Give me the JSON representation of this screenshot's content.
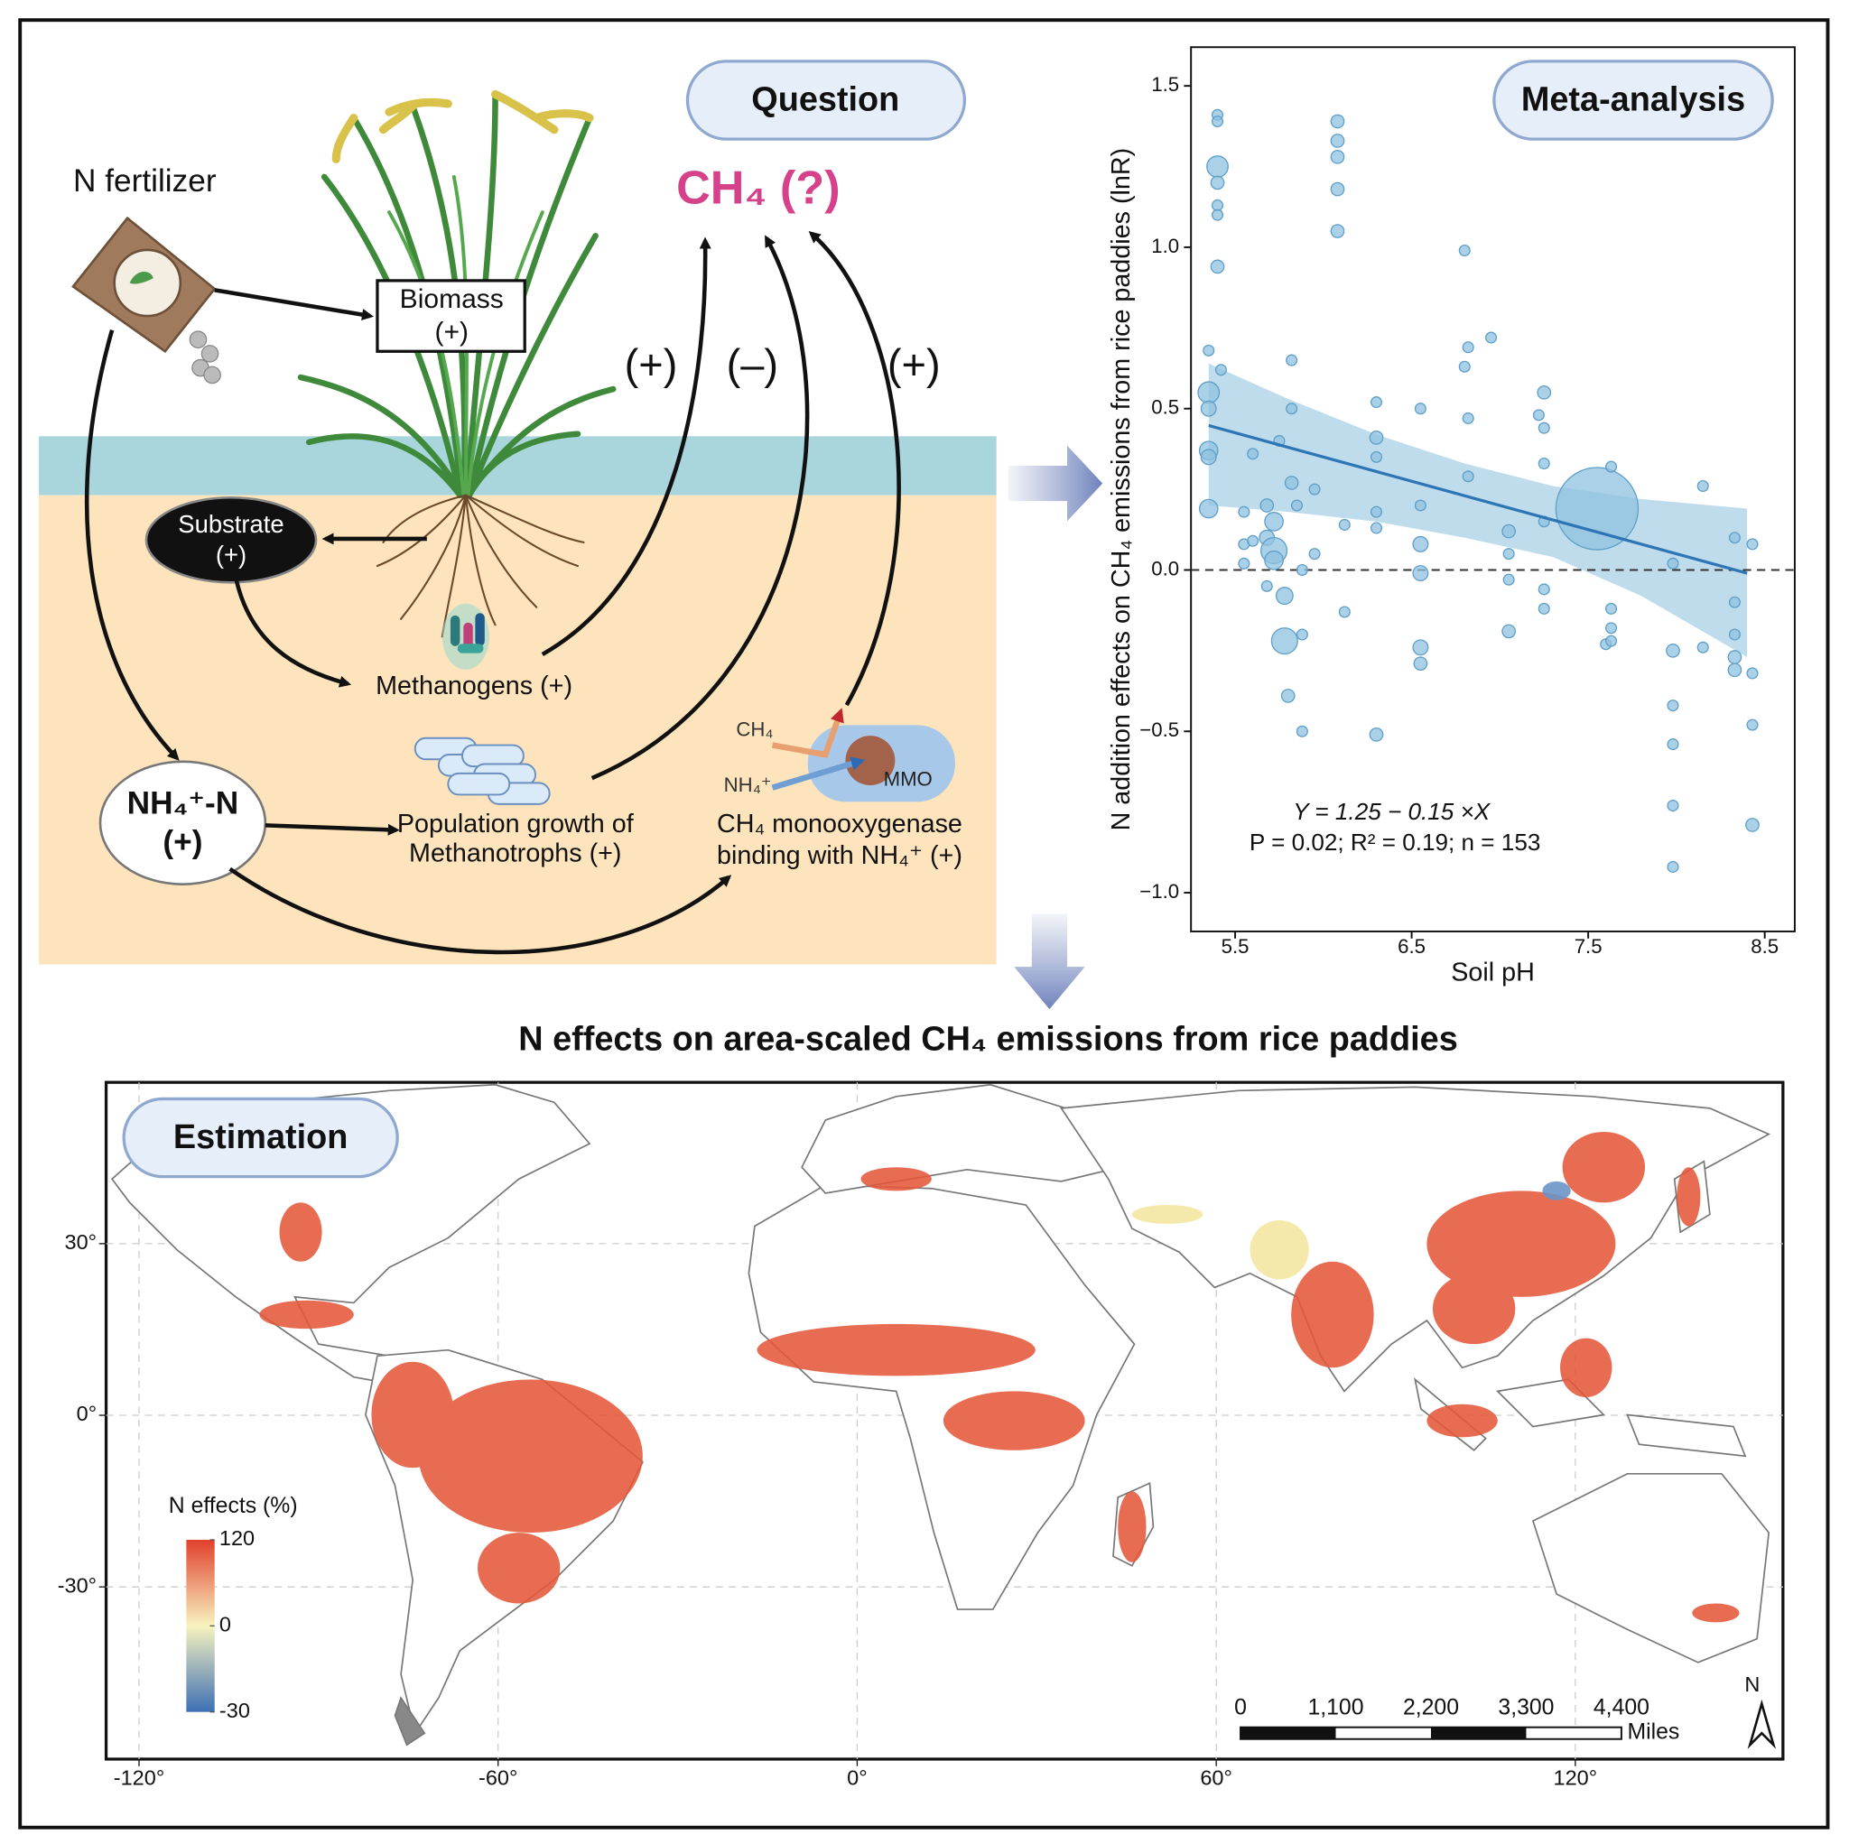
{
  "diagram": {
    "fertilizer": "N fertilizer",
    "question": "Question",
    "target": "CH₄ (?)",
    "biomass": [
      "Biomass",
      "(+)"
    ],
    "substrate": [
      "Substrate",
      "(+)"
    ],
    "methanogens": "Methanogens (+)",
    "ammonium": [
      "NH₄⁺-N",
      "(+)"
    ],
    "methanotrophs": [
      "Population growth of",
      "Methanotrophs (+)"
    ],
    "monooxygenase": [
      "CH₄ monooxygenase",
      "binding with NH₄⁺ (+)"
    ],
    "mmo_labels": [
      "CH₄",
      "NH₄⁺",
      "MMO"
    ],
    "pathway_signs": [
      "(+)",
      "(–)",
      "(+)"
    ]
  },
  "chart_data": {
    "type": "scatter",
    "title": "Meta-analysis",
    "x_label": "Soil pH",
    "y_label": "N addition effects on CH₄ emissions from rice paddies (lnR)",
    "x": [
      5.4,
      5.4,
      5.4,
      5.4,
      5.4,
      5.4,
      5.4,
      5.35,
      5.35,
      5.35,
      5.35,
      5.35,
      5.35,
      5.42,
      5.55,
      5.55,
      5.55,
      5.6,
      5.6,
      5.68,
      5.68,
      5.68,
      5.72,
      5.72,
      5.72,
      5.75,
      5.78,
      5.78,
      5.8,
      5.82,
      5.82,
      5.82,
      5.85,
      5.88,
      5.88,
      5.88,
      5.95,
      5.95,
      6.08,
      6.08,
      6.08,
      6.08,
      6.08,
      6.12,
      6.12,
      6.3,
      6.3,
      6.3,
      6.3,
      6.3,
      6.3,
      6.55,
      6.55,
      6.55,
      6.55,
      6.55,
      6.55,
      6.8,
      6.82,
      6.8,
      6.82,
      6.82,
      6.95,
      7.05,
      7.05,
      7.05,
      7.05,
      7.22,
      7.25,
      7.25,
      7.25,
      7.25,
      7.25,
      7.25,
      7.55,
      7.6,
      7.63,
      7.63,
      7.63,
      7.63,
      7.98,
      7.98,
      7.98,
      7.98,
      7.98,
      7.98,
      8.15,
      8.15,
      8.33,
      8.33,
      8.33,
      8.33,
      8.33,
      8.43,
      8.43,
      8.43,
      8.43
    ],
    "values": [
      1.41,
      1.39,
      1.25,
      1.2,
      1.13,
      1.1,
      0.94,
      0.68,
      0.55,
      0.5,
      0.37,
      0.35,
      0.19,
      0.62,
      0.18,
      0.08,
      0.02,
      0.36,
      0.09,
      0.2,
      0.1,
      -0.05,
      0.15,
      0.06,
      0.03,
      0.4,
      -0.08,
      -0.22,
      -0.39,
      0.65,
      0.5,
      0.27,
      0.2,
      0,
      -0.2,
      -0.5,
      0.25,
      0.05,
      1.39,
      1.33,
      1.28,
      1.18,
      1.05,
      0.14,
      -0.13,
      0.52,
      0.41,
      0.35,
      0.18,
      0.13,
      -0.51,
      0.5,
      0.2,
      0.08,
      -0.01,
      -0.24,
      -0.29,
      0.99,
      0.69,
      0.63,
      0.47,
      0.29,
      0.72,
      0.12,
      0.05,
      -0.03,
      -0.19,
      0.48,
      0.55,
      0.44,
      0.33,
      0.15,
      -0.06,
      -0.12,
      0.19,
      -0.23,
      0.32,
      -0.12,
      -0.18,
      -0.22,
      0.02,
      -0.25,
      -0.42,
      -0.54,
      -0.73,
      -0.92,
      0.26,
      -0.24,
      0.1,
      -0.1,
      -0.2,
      -0.27,
      -0.31,
      0.08,
      -0.32,
      -0.48,
      -0.79
    ],
    "sizes": [
      1,
      1,
      4,
      1.5,
      1,
      1,
      1.5,
      1,
      4,
      2,
      3,
      2,
      3,
      1,
      1,
      1,
      1,
      1,
      1,
      1.5,
      2,
      1,
      3,
      6,
      3,
      1,
      2.5,
      6,
      1.5,
      1,
      1,
      1.5,
      1,
      1,
      1,
      1,
      1,
      1,
      1.5,
      1.5,
      1.5,
      1.5,
      1.5,
      1,
      1,
      1,
      1.5,
      1,
      1,
      1,
      1.5,
      1,
      1,
      2,
      2,
      2,
      1.5,
      1,
      1,
      1,
      1,
      1,
      1,
      1.5,
      1,
      1,
      1.5,
      1,
      1.5,
      1,
      1,
      1,
      1,
      1,
      60,
      1,
      1,
      1,
      1,
      1,
      1,
      1.5,
      1,
      1,
      1,
      1,
      1,
      1,
      1,
      1,
      1,
      1.5,
      1.5,
      1,
      1,
      1,
      1.5
    ],
    "color": "#8fc1e0",
    "fit": {
      "intercept": 1.25,
      "slope": -0.15,
      "color": "#2e75b6"
    },
    "band": {
      "x": [
        5.35,
        5.8,
        6.3,
        6.8,
        7.3,
        7.8,
        8.4
      ],
      "lower": [
        0.2,
        0.18,
        0.15,
        0.1,
        0.04,
        -0.08,
        -0.27
      ],
      "upper": [
        0.64,
        0.53,
        0.42,
        0.33,
        0.26,
        0.22,
        0.19
      ],
      "color": "#a9d0e6"
    },
    "hline": 0,
    "annotations": [
      "Y = 1.25 − 0.15 ×X",
      "P = 0.02; R² = 0.19; n = 153"
    ],
    "xlim": [
      5.25,
      8.67
    ],
    "ylim": [
      -1.12,
      1.62
    ],
    "xticks": [
      5.5,
      6.5,
      7.5,
      8.5
    ],
    "yticks": [
      {
        "value": -1,
        "label": "−1.0"
      },
      {
        "value": -0.5,
        "label": "−0.5"
      },
      {
        "value": 0,
        "label": "0.0"
      },
      0.5,
      {
        "value": 1,
        "label": "1.0"
      },
      1.5
    ],
    "grid": false
  },
  "map": {
    "title": "N effects on area-scaled CH₄ emissions from rice paddies",
    "panel": "Estimation",
    "legend_title": "N effects (%)",
    "colorbar": {
      "ticks": [
        120,
        0,
        -30
      ],
      "range": [
        -30,
        120
      ],
      "colors": [
        "#3c6fb5",
        "#f8f3bf",
        "#e2402c"
      ]
    },
    "xlim": [
      -125.5,
      154.7
    ],
    "ylim": [
      -60.1,
      58.2
    ],
    "xticks": [
      {
        "value": -120,
        "label": "-120°"
      },
      {
        "value": -60,
        "label": "-60°"
      },
      {
        "value": 0,
        "label": "0°"
      },
      {
        "value": 60,
        "label": "60°"
      },
      {
        "value": 120,
        "label": "120°"
      }
    ],
    "yticks": [
      {
        "value": 30,
        "label": "30°"
      },
      {
        "value": 0,
        "label": "0°"
      },
      {
        "value": -30,
        "label": "-30°"
      }
    ],
    "grid": true,
    "scale_bar": {
      "ticks": [
        0,
        {
          "value": 1100,
          "label": "1,100"
        },
        {
          "value": 2200,
          "label": "2,200"
        },
        {
          "value": 3300,
          "label": "3,300"
        },
        {
          "value": 4400,
          "label": "4,400"
        }
      ],
      "unit": "Miles"
    },
    "north": "N"
  }
}
